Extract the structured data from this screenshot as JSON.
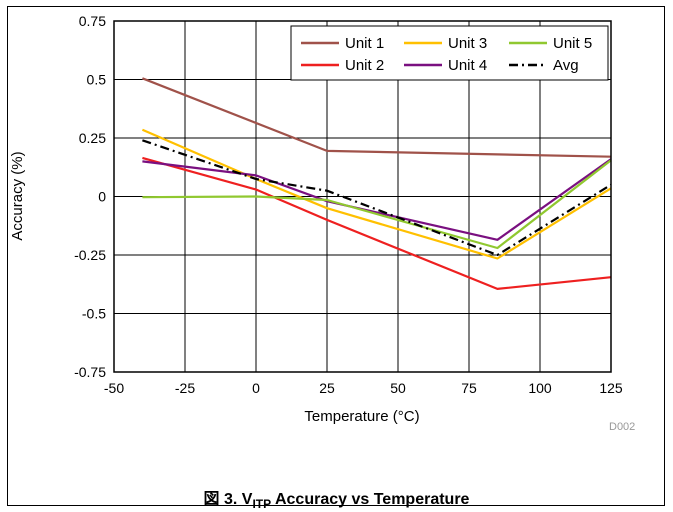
{
  "chart_data": {
    "type": "line",
    "title": "",
    "xlabel": "Temperature (°C)",
    "ylabel": "Accuracy (%)",
    "xlim": [
      -50,
      125
    ],
    "ylim": [
      -0.75,
      0.75
    ],
    "x_ticks": [
      "-50",
      "-25",
      "0",
      "25",
      "50",
      "75",
      "100",
      "125"
    ],
    "y_ticks": [
      "0.75",
      "0.5",
      "0.25",
      "0",
      "-0.25",
      "-0.5",
      "-0.75"
    ],
    "grid": true,
    "legend_position": "top-right",
    "series": [
      {
        "name": "Unit 1",
        "color": "#a0524a",
        "dash": "",
        "x": [
          -40,
          25,
          85,
          125
        ],
        "y": [
          0.505,
          0.195,
          0.18,
          0.17
        ]
      },
      {
        "name": "Unit 2",
        "color": "#ee2020",
        "dash": "",
        "x": [
          -40,
          0,
          25,
          85,
          125
        ],
        "y": [
          0.165,
          0.03,
          -0.1,
          -0.395,
          -0.345
        ]
      },
      {
        "name": "Unit 3",
        "color": "#ffc000",
        "dash": "",
        "x": [
          -40,
          0,
          25,
          85,
          125
        ],
        "y": [
          0.285,
          0.075,
          -0.05,
          -0.265,
          0.035
        ]
      },
      {
        "name": "Unit 4",
        "color": "#7a1080",
        "dash": "",
        "x": [
          -40,
          0,
          25,
          85,
          125
        ],
        "y": [
          0.15,
          0.09,
          -0.02,
          -0.185,
          0.16
        ]
      },
      {
        "name": "Unit 5",
        "color": "#90c830",
        "dash": "",
        "x": [
          -40,
          0,
          25,
          85,
          125
        ],
        "y": [
          -0.003,
          0.0,
          -0.015,
          -0.22,
          0.155
        ]
      },
      {
        "name": "Avg",
        "color": "#000000",
        "dash": "9,4,2,4",
        "x": [
          -40,
          0,
          25,
          85,
          125
        ],
        "y": [
          0.24,
          0.075,
          0.025,
          -0.25,
          0.05
        ]
      }
    ],
    "annotation": "D002"
  },
  "caption": {
    "prefix": "図 3. V",
    "subscript": "ITP",
    "suffix": " Accuracy vs Temperature"
  }
}
